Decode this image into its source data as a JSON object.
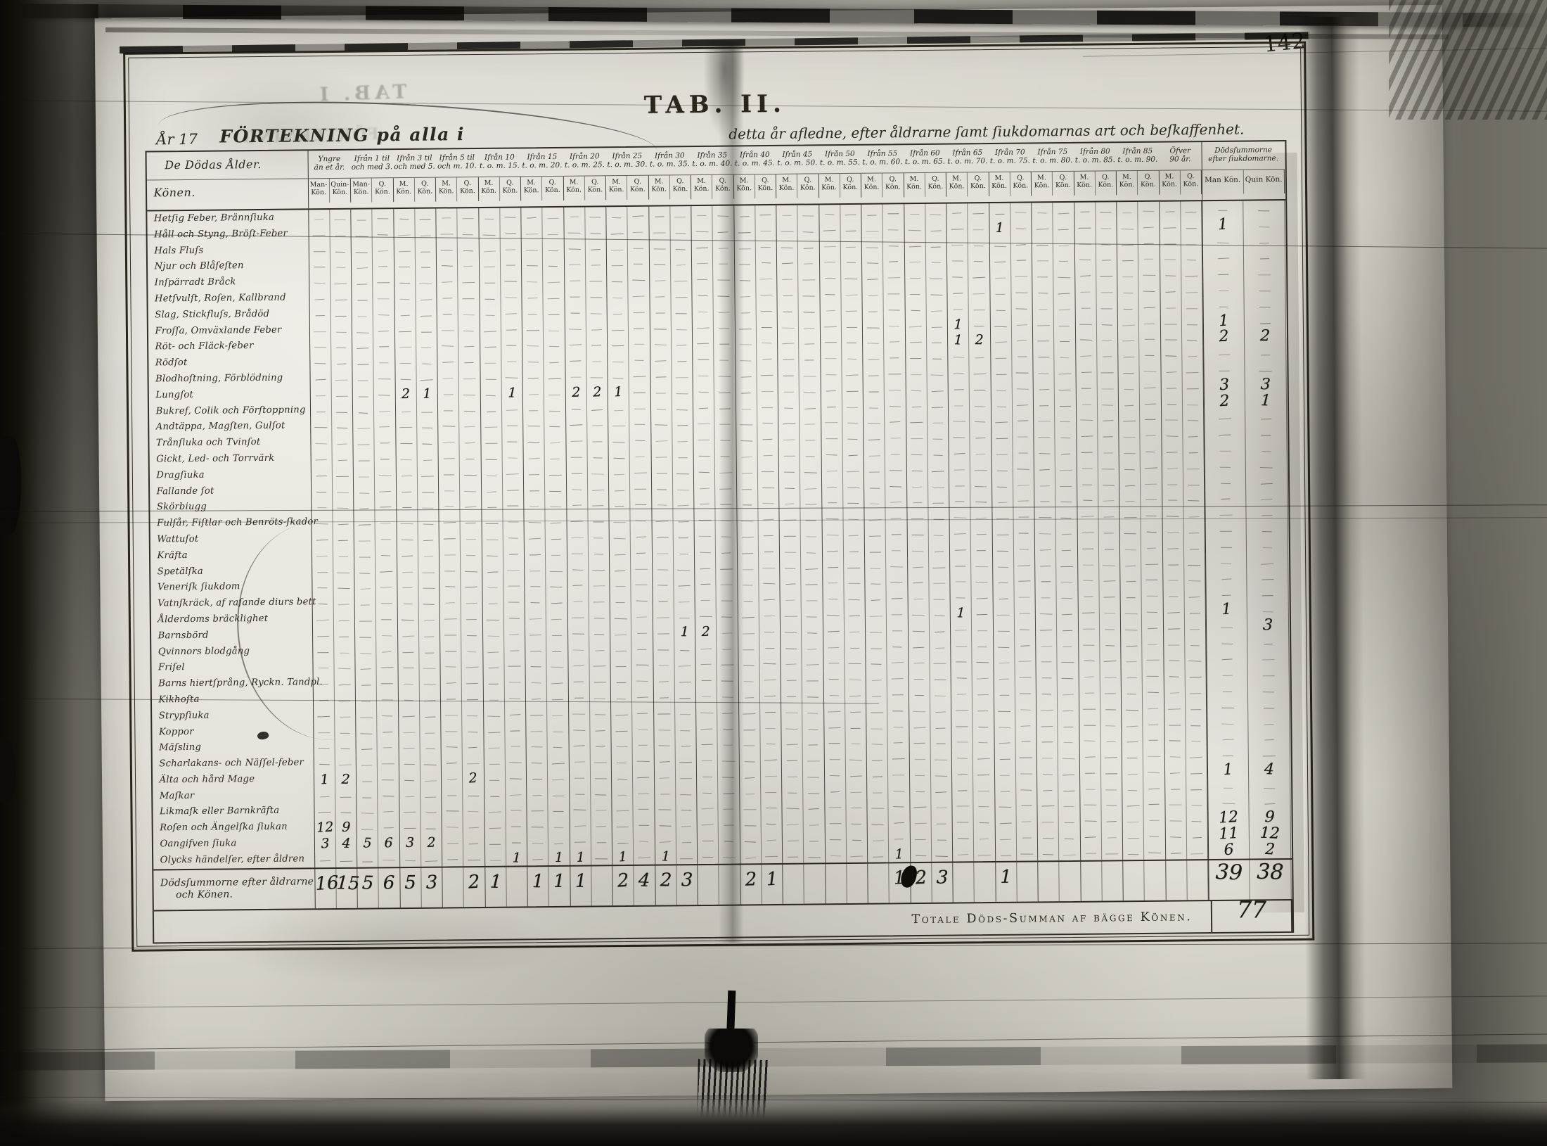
{
  "page": {
    "page_number": "142",
    "tab_title": "TAB. II.",
    "year_prefix": "År 17",
    "heading_main": "FÖRTEKNING på alla i",
    "heading_rest": "detta år afledne, efter åldrarne ſamt ſiukdomarnas art och beſkaffenhet.",
    "ghost_title": "TAB. I",
    "ghost_heading": "FÖRTEKNING"
  },
  "table": {
    "corner_top": "De Dödas Ålder.",
    "corner_bottom": "Könen.",
    "age_groups": [
      {
        "l1": "Yngre",
        "l2": "än et år.",
        "m": "Man- Kön.",
        "q": "Quin- Kön."
      },
      {
        "l1": "Ifrån 1 til",
        "l2": "och med 3.",
        "m": "Man- Kön.",
        "q": "Q. Kön."
      },
      {
        "l1": "Ifrån 3 til",
        "l2": "och med 5.",
        "m": "M. Kön.",
        "q": "Q. Kön."
      },
      {
        "l1": "Ifrån 5 til",
        "l2": "och m. 10.",
        "m": "M. Kön.",
        "q": "Q. Kön."
      },
      {
        "l1": "Ifrån 10",
        "l2": "t. o. m. 15.",
        "m": "M. Kön.",
        "q": "Q. Kön."
      },
      {
        "l1": "Ifrån 15",
        "l2": "t. o. m. 20.",
        "m": "M. Kön.",
        "q": "Q. Kön."
      },
      {
        "l1": "Ifrån 20",
        "l2": "t. o. m. 25.",
        "m": "M. Kön.",
        "q": "Q. Kön."
      },
      {
        "l1": "Ifrån 25",
        "l2": "t. o. m. 30.",
        "m": "M. Kön.",
        "q": "Q. Kön."
      },
      {
        "l1": "Ifrån 30",
        "l2": "t. o. m. 35.",
        "m": "M. Kön.",
        "q": "Q. Kön."
      },
      {
        "l1": "Ifrån 35",
        "l2": "t. o. m. 40.",
        "m": "M. Kön.",
        "q": "Q. Kön."
      },
      {
        "l1": "Ifrån 40",
        "l2": "t. o. m. 45.",
        "m": "M. Kön.",
        "q": "Q. Kön."
      },
      {
        "l1": "Ifrån 45",
        "l2": "t. o. m. 50.",
        "m": "M. Kön.",
        "q": "Q. Kön."
      },
      {
        "l1": "Ifrån 50",
        "l2": "t. o. m. 55.",
        "m": "M. Kön.",
        "q": "Q. Kön."
      },
      {
        "l1": "Ifrån 55",
        "l2": "t. o. m. 60.",
        "m": "M. Kön.",
        "q": "Q. Kön."
      },
      {
        "l1": "Ifrån 60",
        "l2": "t. o. m. 65.",
        "m": "M. Kön.",
        "q": "Q. Kön."
      },
      {
        "l1": "Ifrån 65",
        "l2": "t. o. m. 70.",
        "m": "M. Kön.",
        "q": "Q. Kön."
      },
      {
        "l1": "Ifrån 70",
        "l2": "t. o. m. 75.",
        "m": "M. Kön.",
        "q": "Q. Kön."
      },
      {
        "l1": "Ifrån 75",
        "l2": "t. o. m. 80.",
        "m": "M. Kön.",
        "q": "Q. Kön."
      },
      {
        "l1": "Ifrån 80",
        "l2": "t. o. m. 85.",
        "m": "M. Kön.",
        "q": "Q. Kön."
      },
      {
        "l1": "Ifrån 85",
        "l2": "t. o. m. 90.",
        "m": "M. Kön.",
        "q": "Q. Kön."
      },
      {
        "l1": "Öfver",
        "l2": "90 år.",
        "m": "M. Kön.",
        "q": "Q. Kön."
      }
    ],
    "totals_header": {
      "l1": "Dödsſummorne",
      "l2": "efter ſiukdomarne.",
      "m": "Man Kön.",
      "q": "Quin Kön."
    },
    "rows": [
      {
        "label": "Hetſig Feber, Brännſiuka",
        "cells": {},
        "tm": "",
        "tq": ""
      },
      {
        "label": "Håll och Styng, Bröſt-Feber",
        "cells": {
          "32": "1"
        },
        "tm": "1",
        "tq": ""
      },
      {
        "label": "Hals Fluſs",
        "cells": {},
        "tm": "",
        "tq": ""
      },
      {
        "label": "Njur och Blåſeſten",
        "cells": {},
        "tm": "",
        "tq": ""
      },
      {
        "label": "Inſpärradt Bråck",
        "cells": {},
        "tm": "",
        "tq": ""
      },
      {
        "label": "Hetſvulſt, Roſen, Kallbrand",
        "cells": {},
        "tm": "",
        "tq": ""
      },
      {
        "label": "Slag, Stickfluſs, Brådöd",
        "cells": {},
        "tm": "",
        "tq": ""
      },
      {
        "label": "Froſſa, Omväxlande Feber",
        "cells": {
          "30": "1"
        },
        "tm": "1",
        "tq": ""
      },
      {
        "label": "Röt- och Fläck-feber",
        "cells": {
          "30": "1",
          "31": "2"
        },
        "tm": "2",
        "tq": "2"
      },
      {
        "label": "Rödſot",
        "cells": {},
        "tm": "",
        "tq": ""
      },
      {
        "label": "Blodhoſtning, Förblödning",
        "cells": {},
        "tm": "",
        "tq": ""
      },
      {
        "label": "Lungſot",
        "cells": {
          "4": "2",
          "5": "1",
          "9": "1",
          "12": "2",
          "13": "2",
          "14": "1"
        },
        "tm": "3",
        "tq": "3"
      },
      {
        "label": "Bukref, Colik och Förſtoppning",
        "cells": {},
        "tm": "2",
        "tq": "1"
      },
      {
        "label": "Andtäppa, Magſten, Gulſot",
        "cells": {},
        "tm": "",
        "tq": ""
      },
      {
        "label": "Trånſiuka och Tvinſot",
        "cells": {},
        "tm": "",
        "tq": ""
      },
      {
        "label": "Gickt, Led- och Torrvärk",
        "cells": {},
        "tm": "",
        "tq": ""
      },
      {
        "label": "Dragſiuka",
        "cells": {},
        "tm": "",
        "tq": ""
      },
      {
        "label": "Fallande ſot",
        "cells": {},
        "tm": "",
        "tq": ""
      },
      {
        "label": "Skörbiugg",
        "cells": {},
        "tm": "",
        "tq": ""
      },
      {
        "label": "Fulſår, Fiſtlar och Benröts-ſkador",
        "cells": {},
        "tm": "",
        "tq": ""
      },
      {
        "label": "Wattuſot",
        "cells": {},
        "tm": "",
        "tq": ""
      },
      {
        "label": "Kräfta",
        "cells": {},
        "tm": "",
        "tq": ""
      },
      {
        "label": "Spetälſka",
        "cells": {},
        "tm": "",
        "tq": ""
      },
      {
        "label": "Veneriſk ſiukdom",
        "cells": {},
        "tm": "",
        "tq": ""
      },
      {
        "label": "Vatnſkräck, af raſande diurs bett",
        "cells": {},
        "tm": "",
        "tq": ""
      },
      {
        "label": "Ålderdoms bräcklighet",
        "cells": {
          "30": "1"
        },
        "tm": "1",
        "tq": ""
      },
      {
        "label": "Barnsbörd",
        "cells": {
          "17": "1",
          "18": "2"
        },
        "tm": "",
        "tq": "3"
      },
      {
        "label": "Qvinnors blodgång",
        "cells": {},
        "tm": "",
        "tq": ""
      },
      {
        "label": "Friſel",
        "cells": {},
        "tm": "",
        "tq": ""
      },
      {
        "label": "Barns hiertſprång, Ryckn. Tandpl.",
        "cells": {},
        "tm": "",
        "tq": ""
      },
      {
        "label": "Kikhoſta",
        "cells": {},
        "tm": "",
        "tq": ""
      },
      {
        "label": "Strypſiuka",
        "cells": {},
        "tm": "",
        "tq": ""
      },
      {
        "label": "Koppor",
        "cells": {},
        "tm": "",
        "tq": ""
      },
      {
        "label": "Mäſsling",
        "cells": {},
        "tm": "",
        "tq": ""
      },
      {
        "label": "Scharlakans- och Näſſel-feber",
        "cells": {},
        "tm": "",
        "tq": ""
      },
      {
        "label": "Älta och hård Mage",
        "cells": {
          "0": "1",
          "1": "2",
          "7": "2"
        },
        "tm": "1",
        "tq": "4"
      },
      {
        "label": "Maſkar",
        "cells": {},
        "tm": "",
        "tq": ""
      },
      {
        "label": "Likmaſk eller Barnkräfta",
        "cells": {},
        "tm": "",
        "tq": ""
      },
      {
        "label": "Roſen och Ängelſka ſiukan",
        "cells": {
          "0": "12",
          "1": "9"
        },
        "tm": "12",
        "tq": "9"
      },
      {
        "label": "Oangifven ſiuka",
        "cells": {
          "0": "3",
          "1": "4",
          "2": "5",
          "3": "6",
          "4": "3",
          "5": "2"
        },
        "tm": "11",
        "tq": "12"
      },
      {
        "label": "Olycks händelſer, efter åldren",
        "cells": {
          "9": "1",
          "11": "1",
          "12": "1",
          "14": "1",
          "16": "1",
          "27": "1"
        },
        "tm": "6",
        "tq": "2"
      }
    ],
    "footer": {
      "l1": "Dödsſummorne efter åldrarne",
      "l2": "och Könen.",
      "cells": {
        "0": "16",
        "1": "15",
        "2": "5",
        "3": "6",
        "4": "5",
        "5": "3",
        "7": "2",
        "8": "1",
        "10": "1",
        "11": "1",
        "12": "1",
        "14": "2",
        "15": "4",
        "16": "2",
        "17": "3",
        "20": "2",
        "21": "1",
        "27": "1",
        "28": "2",
        "29": "3",
        "32": "1"
      },
      "tm": "39",
      "tq": "38"
    },
    "grand_total": {
      "label": "Totale Döds-Summan af bägge Könen.",
      "value": "77"
    }
  }
}
